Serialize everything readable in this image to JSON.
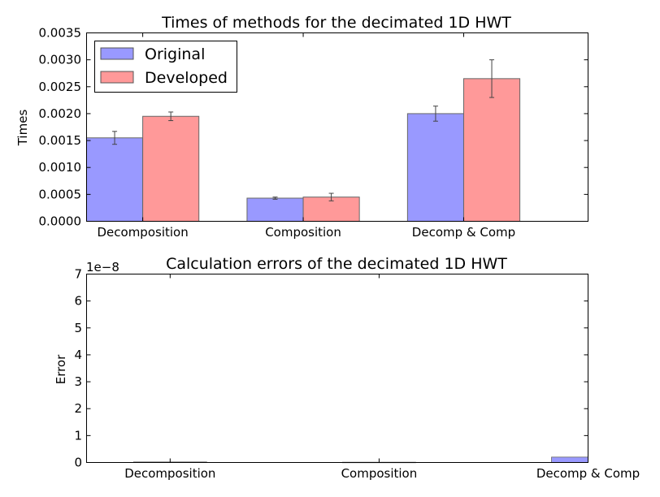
{
  "chart_data": [
    {
      "type": "bar",
      "title": "Times of methods for the decimated 1D HWT",
      "xlabel": "",
      "ylabel": "Times",
      "categories": [
        "Decomposition",
        "Composition",
        "Decomp & Comp"
      ],
      "ylim": [
        0,
        0.0035
      ],
      "yticks": [
        "0.0000",
        "0.0005",
        "0.0010",
        "0.0015",
        "0.0020",
        "0.0025",
        "0.0030",
        "0.0035"
      ],
      "legend_position": "top-left",
      "series": [
        {
          "name": "Original",
          "color": "#9999ff",
          "values": [
            0.00155,
            0.00043,
            0.002
          ],
          "errors": [
            0.00012,
            2e-05,
            0.00014
          ]
        },
        {
          "name": "Developed",
          "color": "#ff9999",
          "values": [
            0.00195,
            0.00045,
            0.00265
          ],
          "errors": [
            8e-05,
            7e-05,
            0.00035
          ]
        }
      ]
    },
    {
      "type": "bar",
      "title": "Calculation errors of the decimated 1D HWT",
      "xlabel": "",
      "ylabel": "Error",
      "categories": [
        "Decomposition",
        "Composition",
        "Decomp & Comp"
      ],
      "ylim": [
        0,
        7
      ],
      "yticks": [
        "0",
        "1",
        "2",
        "3",
        "4",
        "5",
        "6",
        "7"
      ],
      "y_multiplier": "1e−8",
      "series": [
        {
          "color": "#9999ff",
          "values": [
            0.02,
            0.01,
            0.2
          ]
        }
      ]
    }
  ]
}
